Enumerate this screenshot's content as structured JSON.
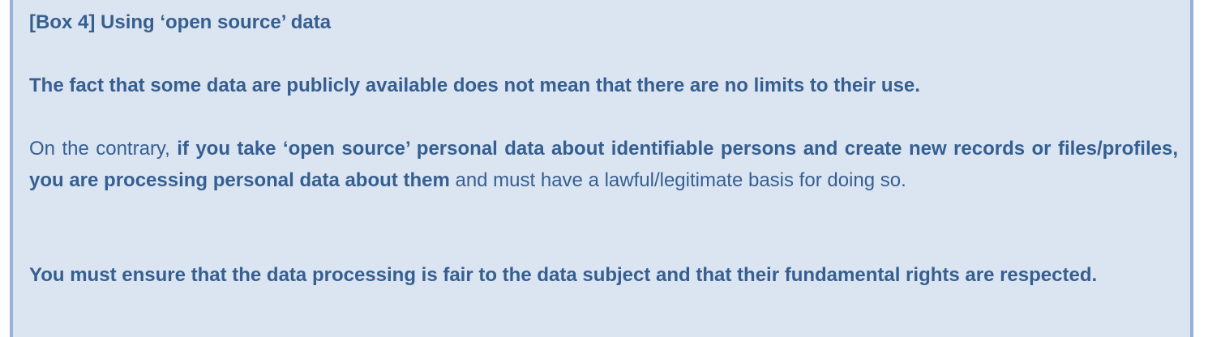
{
  "box": {
    "title": "[Box 4] Using ‘open source’ data",
    "statement": "The fact that some data are publicly available does not mean that there are no limits to their use.",
    "paragraph": {
      "intro": "On the contrary, ",
      "emphasis": "if you take ‘open source’ personal data about identifiable persons and create new records or files/profiles, you are processing personal data about them",
      "rest": " and must have a lawful/legitimate basis for doing so."
    },
    "closing": "You must ensure that the data processing is fair to the data subject and that their fundamental rights are respected."
  },
  "colors": {
    "background": "#dbe5f1",
    "border": "#95b3d7",
    "text": "#365f91"
  }
}
